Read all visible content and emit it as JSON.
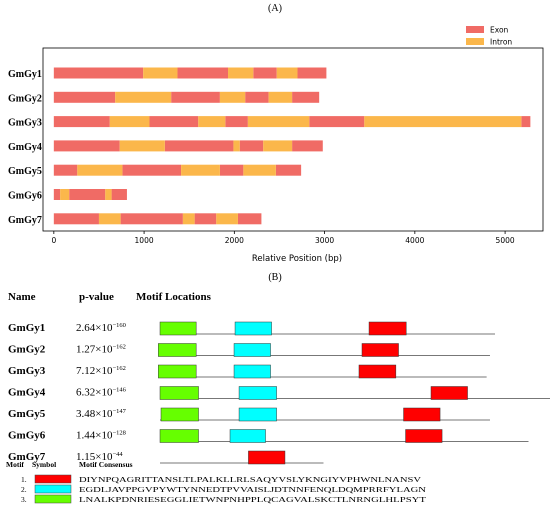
{
  "panel_a": {
    "label": "(A)",
    "legend": [
      {
        "name": "Exon",
        "color": "#f06b65"
      },
      {
        "name": "Intron",
        "color": "#fbb74b"
      }
    ],
    "xlabel": "Relative Position (bp)"
  },
  "chart_data": {
    "type": "bar",
    "orientation": "horizontal-stacked-segments",
    "xlabel": "Relative Position (bp)",
    "xlim": [
      -120,
      5420
    ],
    "xticks": [
      0,
      1000,
      2000,
      3000,
      4000,
      5000
    ],
    "genes": [
      {
        "name": "GmGy1",
        "exons": [
          [
            0,
            990
          ],
          [
            1370,
            1930
          ],
          [
            2210,
            2470
          ],
          [
            2700,
            3020
          ]
        ],
        "introns": [
          [
            990,
            1370
          ],
          [
            1930,
            2210
          ],
          [
            2470,
            2700
          ]
        ]
      },
      {
        "name": "GmGy2",
        "exons": [
          [
            0,
            680
          ],
          [
            1300,
            1840
          ],
          [
            2120,
            2380
          ],
          [
            2640,
            2940
          ]
        ],
        "introns": [
          [
            680,
            1300
          ],
          [
            1840,
            2120
          ],
          [
            2380,
            2640
          ]
        ]
      },
      {
        "name": "GmGy3",
        "exons": [
          [
            0,
            620
          ],
          [
            1060,
            1600
          ],
          [
            1900,
            2150
          ],
          [
            2830,
            3440
          ],
          [
            5180,
            5280
          ]
        ],
        "introns": [
          [
            620,
            1060
          ],
          [
            1600,
            1900
          ],
          [
            2150,
            2830
          ],
          [
            3440,
            5180
          ]
        ]
      },
      {
        "name": "GmGy4",
        "exons": [
          [
            0,
            730
          ],
          [
            1230,
            1990
          ],
          [
            2060,
            2320
          ],
          [
            2640,
            2980
          ]
        ],
        "introns": [
          [
            730,
            1230
          ],
          [
            1990,
            2060
          ],
          [
            2320,
            2640
          ]
        ]
      },
      {
        "name": "GmGy5",
        "exons": [
          [
            0,
            260
          ],
          [
            760,
            1410
          ],
          [
            1840,
            2100
          ],
          [
            2460,
            2740
          ]
        ],
        "introns": [
          [
            260,
            760
          ],
          [
            1410,
            1840
          ],
          [
            2100,
            2460
          ]
        ]
      },
      {
        "name": "GmGy6",
        "exons": [
          [
            0,
            70
          ],
          [
            170,
            570
          ],
          [
            640,
            810
          ]
        ],
        "introns": [
          [
            70,
            170
          ],
          [
            570,
            640
          ]
        ]
      },
      {
        "name": "GmGy7",
        "exons": [
          [
            0,
            500
          ],
          [
            740,
            1430
          ],
          [
            1560,
            1800
          ],
          [
            2040,
            2300
          ]
        ],
        "introns": [
          [
            500,
            740
          ],
          [
            1430,
            1560
          ],
          [
            1800,
            2040
          ]
        ]
      }
    ]
  },
  "panel_b": {
    "label": "(B)",
    "headers": {
      "name": "Name",
      "pvalue": "p-value",
      "locations": "Motif Locations"
    },
    "rows": [
      {
        "name": "GmGy1",
        "p_mant": "2.64×10",
        "p_exp": "−160",
        "length": 1.0,
        "motifs": [
          {
            "m": 3,
            "start": 0.0,
            "end": 0.108
          },
          {
            "m": 2,
            "start": 0.224,
            "end": 0.333
          },
          {
            "m": 1,
            "start": 0.624,
            "end": 0.735
          }
        ]
      },
      {
        "name": "GmGy2",
        "p_mant": "1.27×10",
        "p_exp": "−162",
        "length": 0.985,
        "motifs": [
          {
            "m": 3,
            "start": -0.005,
            "end": 0.108
          },
          {
            "m": 2,
            "start": 0.221,
            "end": 0.33
          },
          {
            "m": 1,
            "start": 0.603,
            "end": 0.712
          }
        ]
      },
      {
        "name": "GmGy3",
        "p_mant": "7.12×10",
        "p_exp": "−162",
        "length": 0.975,
        "motifs": [
          {
            "m": 3,
            "start": -0.005,
            "end": 0.108
          },
          {
            "m": 2,
            "start": 0.221,
            "end": 0.33
          },
          {
            "m": 1,
            "start": 0.594,
            "end": 0.704
          }
        ]
      },
      {
        "name": "GmGy4",
        "p_mant": "6.32×10",
        "p_exp": "−146",
        "length": 1.225,
        "motifs": [
          {
            "m": 3,
            "start": 0.0,
            "end": 0.115
          },
          {
            "m": 2,
            "start": 0.236,
            "end": 0.348
          },
          {
            "m": 1,
            "start": 0.809,
            "end": 0.918
          }
        ]
      },
      {
        "name": "GmGy5",
        "p_mant": "3.48×10",
        "p_exp": "−147",
        "length": 0.985,
        "motifs": [
          {
            "m": 3,
            "start": 0.003,
            "end": 0.115
          },
          {
            "m": 2,
            "start": 0.236,
            "end": 0.348
          },
          {
            "m": 1,
            "start": 0.727,
            "end": 0.836
          }
        ]
      },
      {
        "name": "GmGy6",
        "p_mant": "1.44×10",
        "p_exp": "−128",
        "length": 1.1,
        "motifs": [
          {
            "m": 3,
            "start": 0.0,
            "end": 0.115
          },
          {
            "m": 2,
            "start": 0.209,
            "end": 0.315
          },
          {
            "m": 1,
            "start": 0.733,
            "end": 0.842
          }
        ]
      },
      {
        "name": "GmGy7",
        "p_mant": "1.15×10",
        "p_exp": "−44",
        "length": 0.488,
        "motifs": [
          {
            "m": 1,
            "start": 0.264,
            "end": 0.373
          }
        ]
      }
    ]
  },
  "motif_legend": {
    "headers": {
      "motif": "Motif",
      "symbol": "Symbol",
      "consensus": "Motif Consensus"
    },
    "items": [
      {
        "num": "1.",
        "color": "#ff0000",
        "consensus": "DIYNPQAGRITTANSLTLPALKLLRLSAQYVSLYKNGIYVPHWNLNANSV"
      },
      {
        "num": "2.",
        "color": "#00ffff",
        "consensus": "EGDLJAVPPGVPYWTYNNEDTPVVAISLJDTNNFENQLDQMPRRFYLAGN"
      },
      {
        "num": "3.",
        "color": "#66ff00",
        "consensus": "LNALKPDNRIESEGGLIETWNPNHPPLQCAGVALSKCTLNRNGLHLPSYT"
      }
    ]
  },
  "colors": {
    "exon": "#f06b65",
    "intron": "#fbb74b",
    "motif1": "#ff0000",
    "motif2": "#00ffff",
    "motif3": "#66ff00"
  }
}
